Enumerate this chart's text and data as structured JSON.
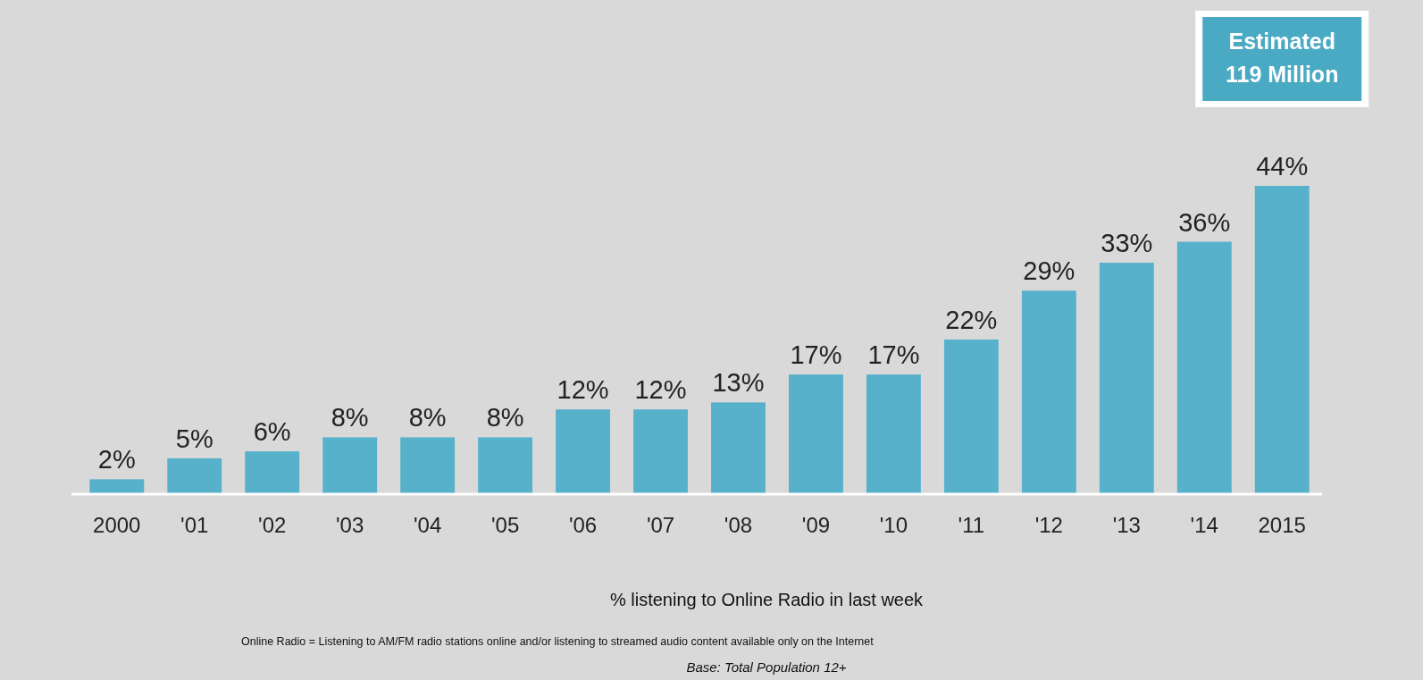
{
  "chart_data": {
    "type": "bar",
    "categories": [
      "2000",
      "'01",
      "'02",
      "'03",
      "'04",
      "'05",
      "'06",
      "'07",
      "'08",
      "'09",
      "'10",
      "'11",
      "'12",
      "'13",
      "'14",
      "2015"
    ],
    "values": [
      2,
      5,
      6,
      8,
      8,
      8,
      12,
      12,
      13,
      17,
      17,
      22,
      29,
      33,
      36,
      44
    ],
    "value_labels": [
      "2%",
      "5%",
      "6%",
      "8%",
      "8%",
      "8%",
      "12%",
      "12%",
      "13%",
      "17%",
      "17%",
      "22%",
      "29%",
      "33%",
      "36%",
      "44%"
    ],
    "color": "#57b1cb",
    "annotations": [
      "Estimated 119 Million",
      "% listening to Online Radio in last week",
      "Online Radio = Listening to AM/FM radio stations online and/or listening to streamed audio content available only on the Internet",
      "Base: Total Population 12+"
    ]
  }
}
